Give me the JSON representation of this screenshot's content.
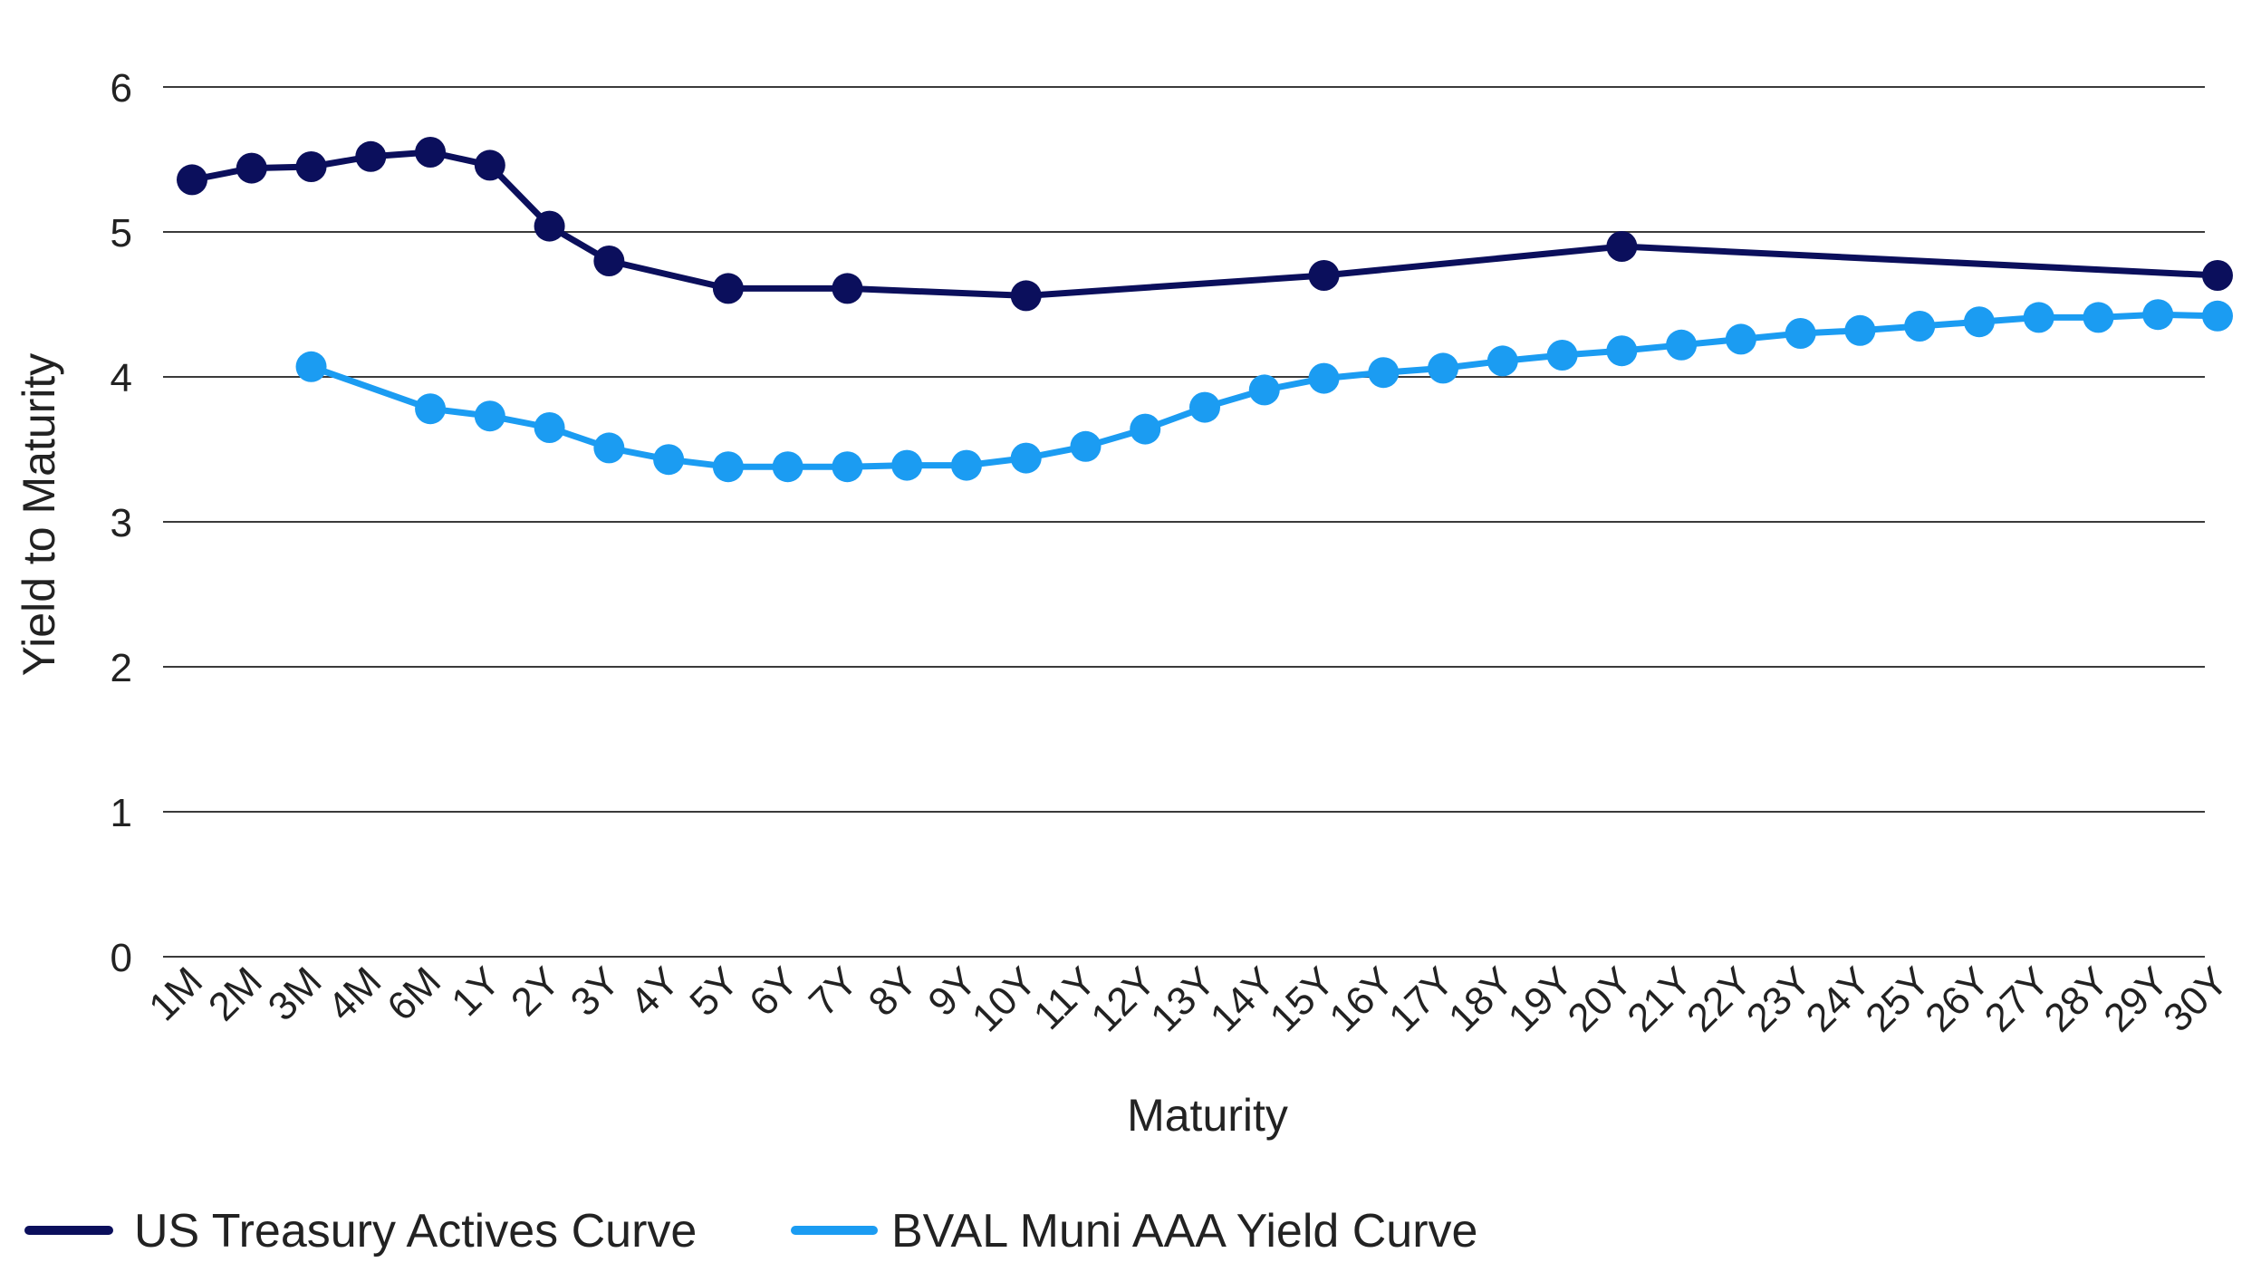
{
  "chart_data": {
    "type": "line",
    "xlabel": "Maturity",
    "ylabel": "Yield to Maturity",
    "ylim": [
      0,
      6
    ],
    "yticks": [
      0,
      1,
      2,
      3,
      4,
      5,
      6
    ],
    "grid": "horizontal",
    "legend_position": "bottom-left",
    "categories": [
      "1M",
      "2M",
      "3M",
      "4M",
      "6M",
      "1Y",
      "2Y",
      "3Y",
      "4Y",
      "5Y",
      "6Y",
      "7Y",
      "8Y",
      "9Y",
      "10Y",
      "11Y",
      "12Y",
      "13Y",
      "14Y",
      "15Y",
      "16Y",
      "17Y",
      "18Y",
      "19Y",
      "20Y",
      "21Y",
      "22Y",
      "23Y",
      "24Y",
      "25Y",
      "26Y",
      "27Y",
      "28Y",
      "29Y",
      "30Y"
    ],
    "series": [
      {
        "name": "US Treasury Actives Curve",
        "color": "#0b0f5c",
        "values": [
          5.36,
          5.44,
          5.45,
          5.52,
          5.55,
          5.46,
          5.04,
          4.8,
          null,
          4.61,
          null,
          4.61,
          null,
          null,
          4.56,
          null,
          null,
          null,
          null,
          4.7,
          null,
          null,
          null,
          null,
          4.9,
          null,
          null,
          null,
          null,
          null,
          null,
          null,
          null,
          null,
          4.7
        ]
      },
      {
        "name": "BVAL Muni AAA Yield Curve",
        "color": "#1b9cf2",
        "values": [
          null,
          null,
          4.07,
          null,
          3.78,
          3.73,
          3.65,
          3.51,
          3.43,
          3.38,
          3.38,
          3.38,
          3.39,
          3.39,
          3.44,
          3.52,
          3.64,
          3.79,
          3.91,
          3.99,
          4.03,
          4.06,
          4.11,
          4.15,
          4.18,
          4.22,
          4.26,
          4.3,
          4.32,
          4.35,
          4.38,
          4.41,
          4.41,
          4.43,
          4.42
        ]
      }
    ]
  }
}
